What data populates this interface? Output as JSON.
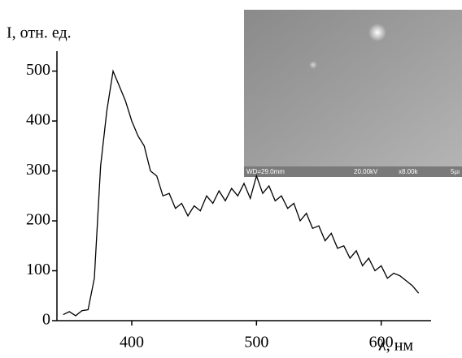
{
  "chart_data": {
    "type": "line",
    "ylabel": "I, отн. ед.",
    "xlabel": "λ, нм",
    "x": [
      345,
      350,
      355,
      360,
      365,
      370,
      375,
      380,
      385,
      390,
      395,
      400,
      405,
      410,
      415,
      420,
      425,
      430,
      435,
      440,
      445,
      450,
      455,
      460,
      465,
      470,
      475,
      480,
      485,
      490,
      495,
      500,
      505,
      510,
      515,
      520,
      525,
      530,
      535,
      540,
      545,
      550,
      555,
      560,
      565,
      570,
      575,
      580,
      585,
      590,
      595,
      600,
      605,
      610,
      615,
      620,
      625,
      630
    ],
    "series": [
      {
        "color": "#000000",
        "values": [
          12,
          18,
          10,
          20,
          22,
          85,
          310,
          420,
          500,
          470,
          440,
          400,
          370,
          350,
          300,
          290,
          250,
          255,
          225,
          235,
          210,
          230,
          220,
          250,
          235,
          260,
          240,
          265,
          250,
          275,
          245,
          290,
          255,
          270,
          240,
          250,
          225,
          235,
          200,
          215,
          185,
          190,
          160,
          175,
          145,
          150,
          125,
          140,
          110,
          125,
          100,
          110,
          85,
          95,
          90,
          80,
          70,
          55
        ]
      }
    ],
    "xlim": [
      340,
      640
    ],
    "xticks": [
      400,
      500,
      600
    ],
    "ylim": [
      0,
      540
    ],
    "yticks": [
      0,
      100,
      200,
      300,
      400,
      500
    ],
    "inset_labels": [
      "WD=29.0mm",
      "20.00kV",
      "x8.00k",
      "5µı"
    ]
  }
}
